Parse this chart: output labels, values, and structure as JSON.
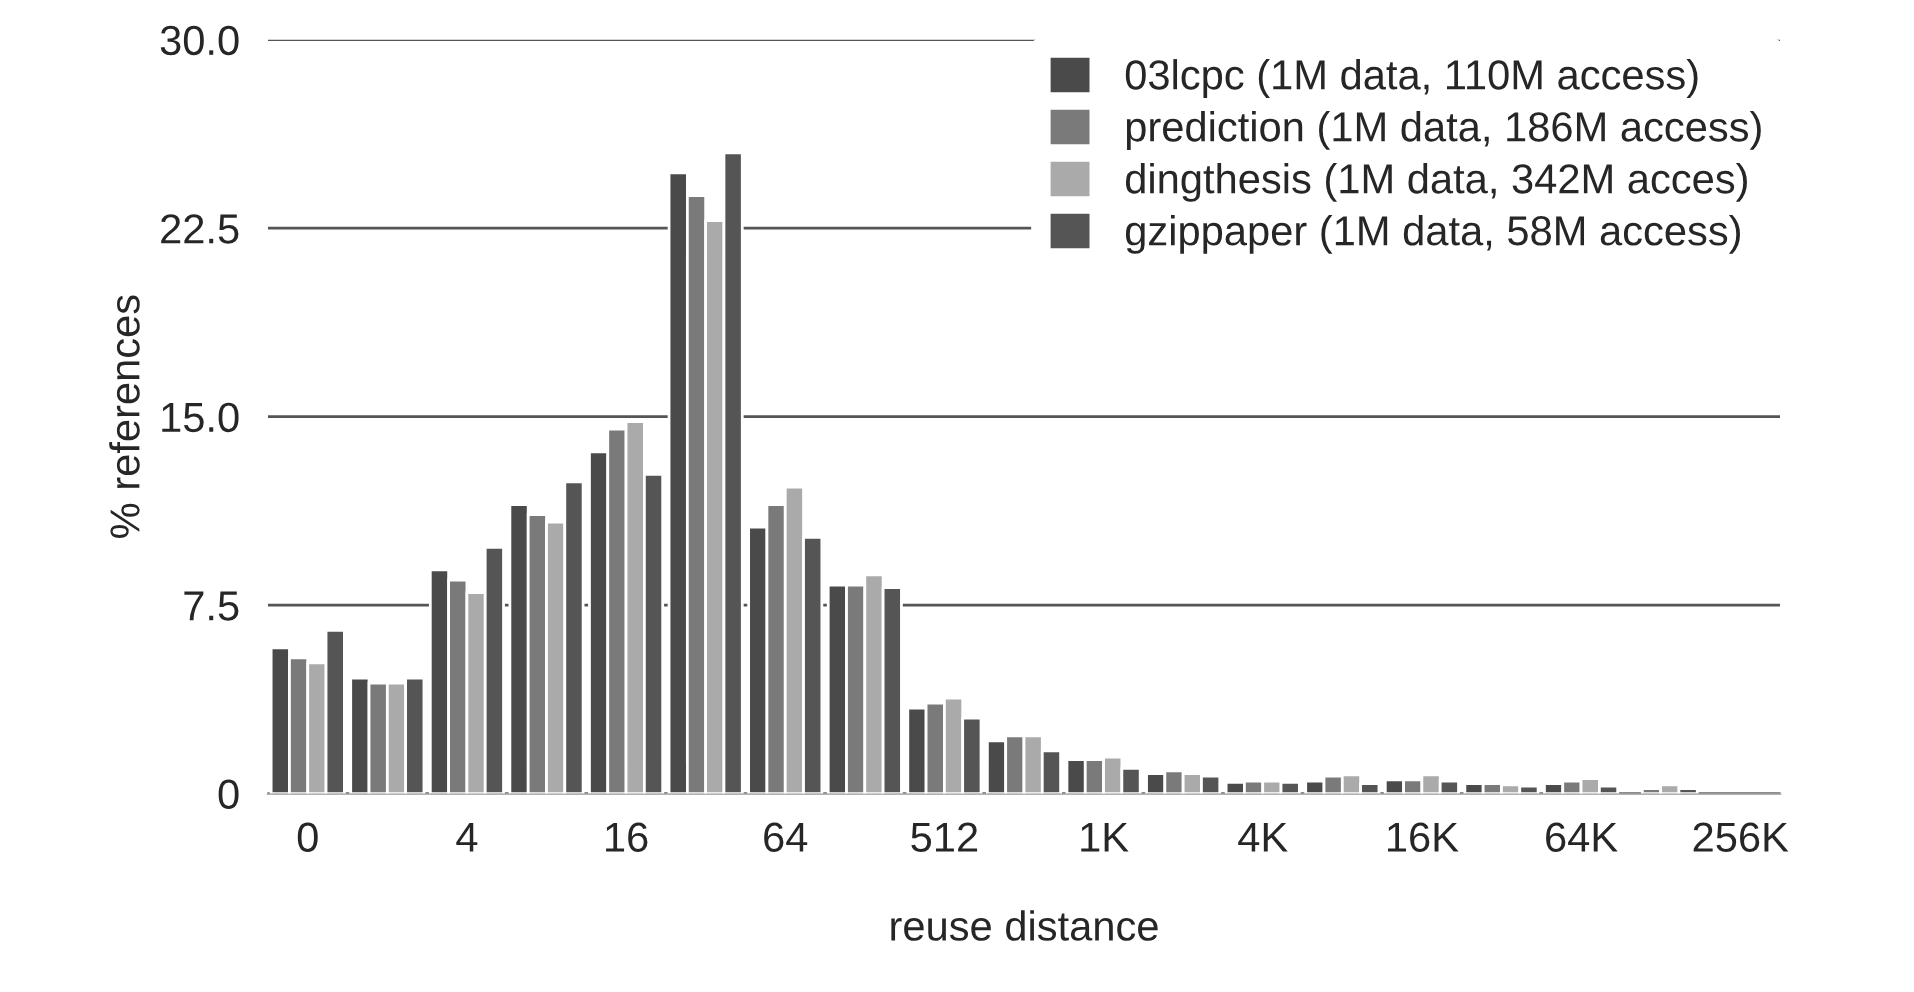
{
  "chart_data": {
    "type": "bar",
    "xlabel": "reuse distance",
    "ylabel": "% references",
    "categories": [
      "0",
      null,
      "4",
      null,
      "16",
      null,
      "64",
      null,
      "512",
      null,
      "1K",
      null,
      "4K",
      null,
      "16K",
      null,
      "64K",
      null,
      "256K"
    ],
    "series": [
      {
        "name": "03lcpc (1M data, 110M access)",
        "color": "#4a4a4a",
        "values": [
          5.8,
          4.6,
          8.9,
          11.5,
          13.6,
          24.7,
          10.6,
          8.3,
          3.4,
          2.1,
          1.35,
          0.8,
          0.45,
          0.5,
          0.55,
          0.4,
          0.4,
          null,
          null
        ]
      },
      {
        "name": "prediction (1M data, 186M access)",
        "color": "#7a7a7a",
        "values": [
          5.4,
          4.4,
          8.5,
          11.1,
          14.5,
          23.8,
          11.5,
          8.3,
          3.6,
          2.3,
          1.35,
          0.9,
          0.5,
          0.7,
          0.55,
          0.4,
          0.5,
          0.2,
          null
        ]
      },
      {
        "name": "dingthesis (1M data, 342M acces)",
        "color": "#aaaaaa",
        "values": [
          5.2,
          4.4,
          8.0,
          10.8,
          14.8,
          22.8,
          12.2,
          8.7,
          3.8,
          2.3,
          1.45,
          0.8,
          0.5,
          0.75,
          0.75,
          0.35,
          0.6,
          0.35,
          null
        ]
      },
      {
        "name": "gzippaper (1M data, 58M access)",
        "color": "#555555",
        "values": [
          6.5,
          4.6,
          9.8,
          12.4,
          12.7,
          25.5,
          10.2,
          8.2,
          3.0,
          1.7,
          1.0,
          0.7,
          0.45,
          0.4,
          0.5,
          0.3,
          0.3,
          0.2,
          null
        ]
      }
    ],
    "ylim": [
      0,
      30
    ],
    "yticks": [
      0,
      {
        "value": 7.5,
        "label": "7.5"
      },
      {
        "value": 15,
        "label": "15.0"
      },
      {
        "value": 22.5,
        "label": "22.5"
      },
      {
        "value": 30,
        "label": "30.0"
      }
    ],
    "grid": "y",
    "legend": "top right"
  }
}
